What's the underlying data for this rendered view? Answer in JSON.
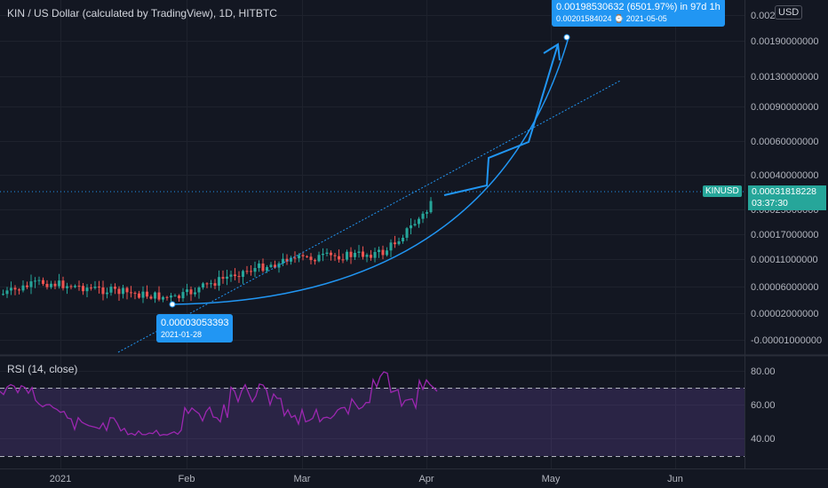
{
  "header": {
    "title": "KIN / US Dollar (calculated by TradingView), 1D, HITBTC"
  },
  "currency_button": "USD",
  "rsi": {
    "label": "RSI (14, close)"
  },
  "colors": {
    "background": "#131722",
    "up_candle": "#26a69a",
    "down_candle": "#ef5350",
    "drawing": "#2196f3",
    "rsi_line": "#9c27b0",
    "rsi_band": "#7e57c2"
  },
  "annotations": {
    "target_value": "0.00198530632 (6501.97%) in 97d 1h",
    "target_sub": "0.00201584024 ⌚ 2021-05-05",
    "start_value": "0.00003053393",
    "start_date": "2021-01-28"
  },
  "price_tag": {
    "symbol": "KINUSD",
    "last_price": "0.00031818228",
    "countdown": "03:37:30"
  },
  "chart_data": {
    "type": "candlestick",
    "title": "KIN / US Dollar (calculated by TradingView), 1D, HITBTC",
    "price_axis_ticks": [
      "0.002",
      "0.00190000000",
      "0.00130000000",
      "0.00090000000",
      "0.00060000000",
      "0.00040000000",
      "0.00025000000",
      "0.00017000000",
      "0.00011000000",
      "0.00006000000",
      "0.00002000000",
      "-0.00001000000"
    ],
    "time_axis_ticks": [
      "2021",
      "Feb",
      "Mar",
      "Apr",
      "May",
      "Jun"
    ],
    "rsi_axis_ticks": [
      "80.00",
      "60.00",
      "40.00"
    ],
    "rsi_bands": [
      30,
      70
    ],
    "start_point": {
      "date": "2021-01-28",
      "price": 3.053393e-05
    },
    "target_point": {
      "date": "2021-05-05",
      "price": 0.00201584024
    }
  }
}
